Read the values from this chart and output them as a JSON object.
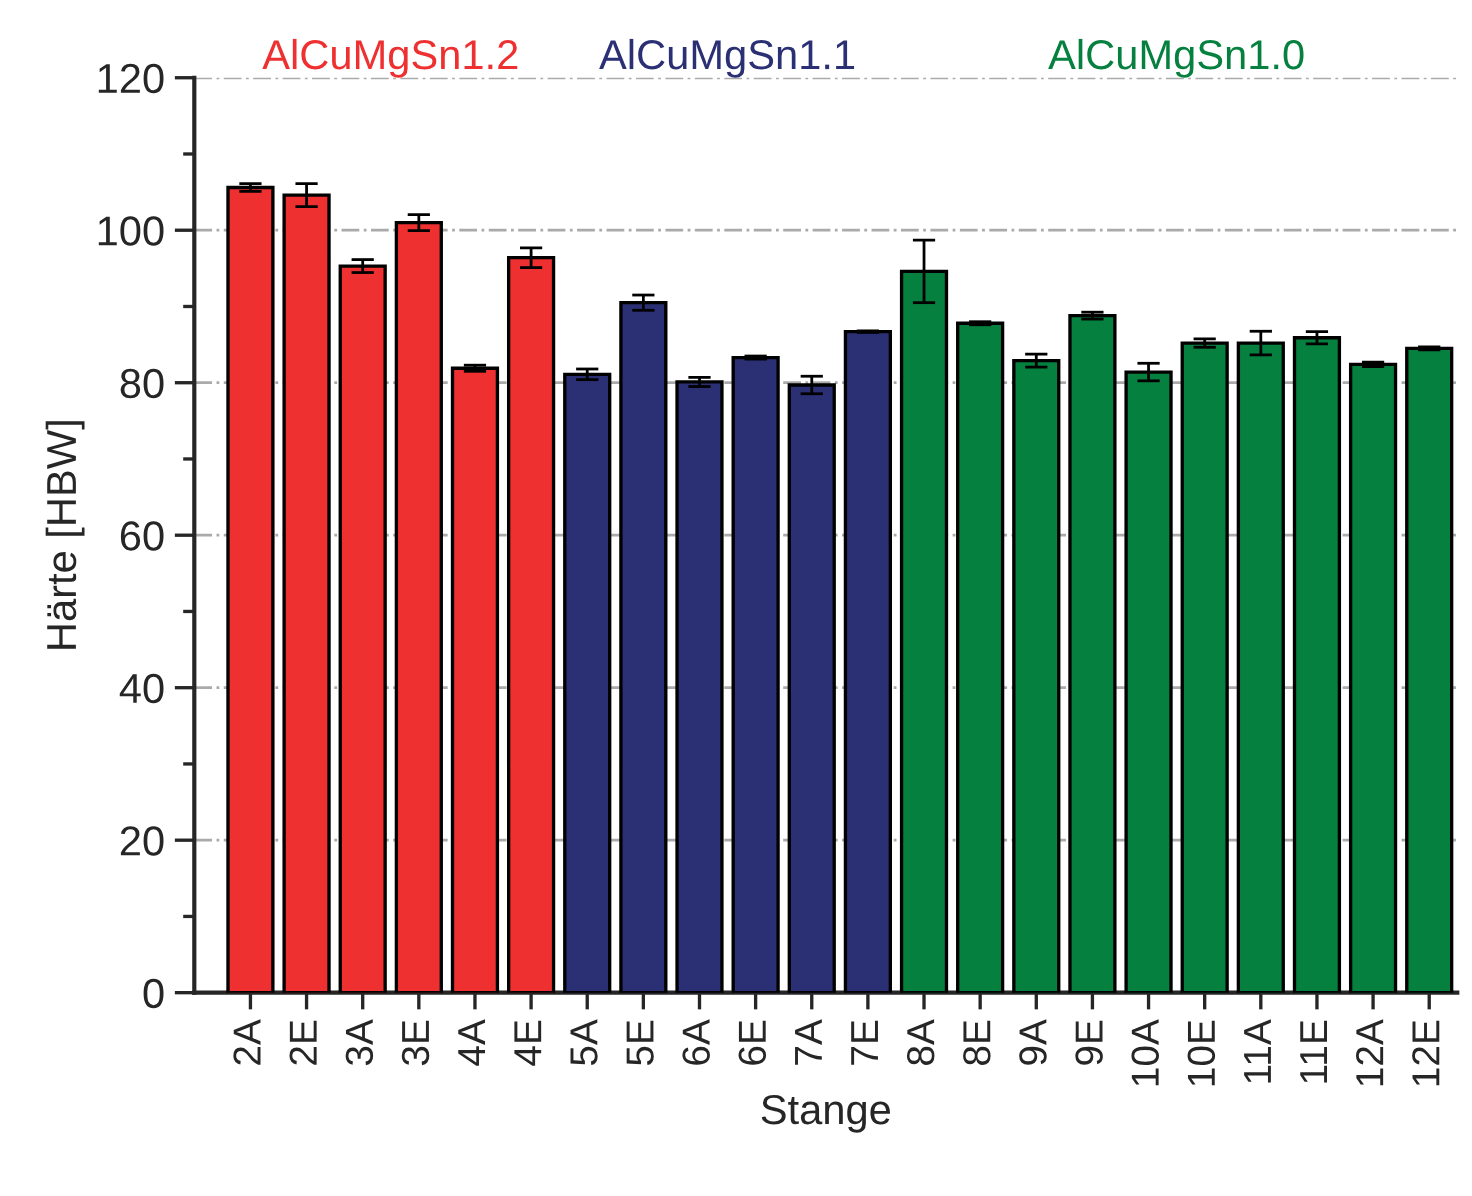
{
  "chart_data": {
    "type": "bar",
    "xlabel": "Stange",
    "ylabel": "Härte [HBW]",
    "categories": [
      "2A",
      "2E",
      "3A",
      "3E",
      "4A",
      "4E",
      "5A",
      "5E",
      "6A",
      "6E",
      "7A",
      "7E",
      "8A",
      "8E",
      "9A",
      "9E",
      "10A",
      "10E",
      "11A",
      "11E",
      "12A",
      "12E"
    ],
    "series": [
      {
        "name": "AlCuMgSn1.2",
        "color": "#ee3030",
        "values": [
          105.6,
          104.6,
          95.3,
          101.0,
          81.9,
          96.4,
          null,
          null,
          null,
          null,
          null,
          null,
          null,
          null,
          null,
          null,
          null,
          null,
          null,
          null,
          null,
          null
        ],
        "errors": [
          0.5,
          1.5,
          0.85,
          1.05,
          0.4,
          1.3,
          null,
          null,
          null,
          null,
          null,
          null,
          null,
          null,
          null,
          null,
          null,
          null,
          null,
          null,
          null,
          null
        ]
      },
      {
        "name": "AlCuMgSn1.1",
        "color": "#2b3075",
        "values": [
          null,
          null,
          null,
          null,
          null,
          null,
          81.1,
          90.5,
          80.1,
          83.3,
          79.7,
          86.7,
          null,
          null,
          null,
          null,
          null,
          null,
          null,
          null,
          null,
          null
        ],
        "errors": [
          null,
          null,
          null,
          null,
          null,
          null,
          0.7,
          1.0,
          0.6,
          0.2,
          1.15,
          0.1,
          null,
          null,
          null,
          null,
          null,
          null,
          null,
          null,
          null,
          null
        ]
      },
      {
        "name": "AlCuMgSn1.0",
        "color": "#05803f",
        "values": [
          null,
          null,
          null,
          null,
          null,
          null,
          null,
          null,
          null,
          null,
          null,
          null,
          94.6,
          87.8,
          82.9,
          88.8,
          81.4,
          85.2,
          85.2,
          85.9,
          82.4,
          84.5
        ],
        "errors": [
          null,
          null,
          null,
          null,
          null,
          null,
          null,
          null,
          null,
          null,
          null,
          null,
          4.1,
          0.2,
          0.85,
          0.45,
          1.15,
          0.55,
          1.55,
          0.8,
          0.3,
          0.2
        ]
      }
    ],
    "ylim": [
      0,
      120
    ],
    "yticks": [
      0,
      {
        "value": 10,
        "label": null
      },
      20,
      {
        "value": 30,
        "label": null
      },
      40,
      {
        "value": 50,
        "label": null
      },
      60,
      {
        "value": 70,
        "label": null
      },
      80,
      {
        "value": 90,
        "label": null
      },
      100,
      {
        "value": 110,
        "label": null
      },
      120
    ],
    "grid": "y",
    "legend": false
  }
}
